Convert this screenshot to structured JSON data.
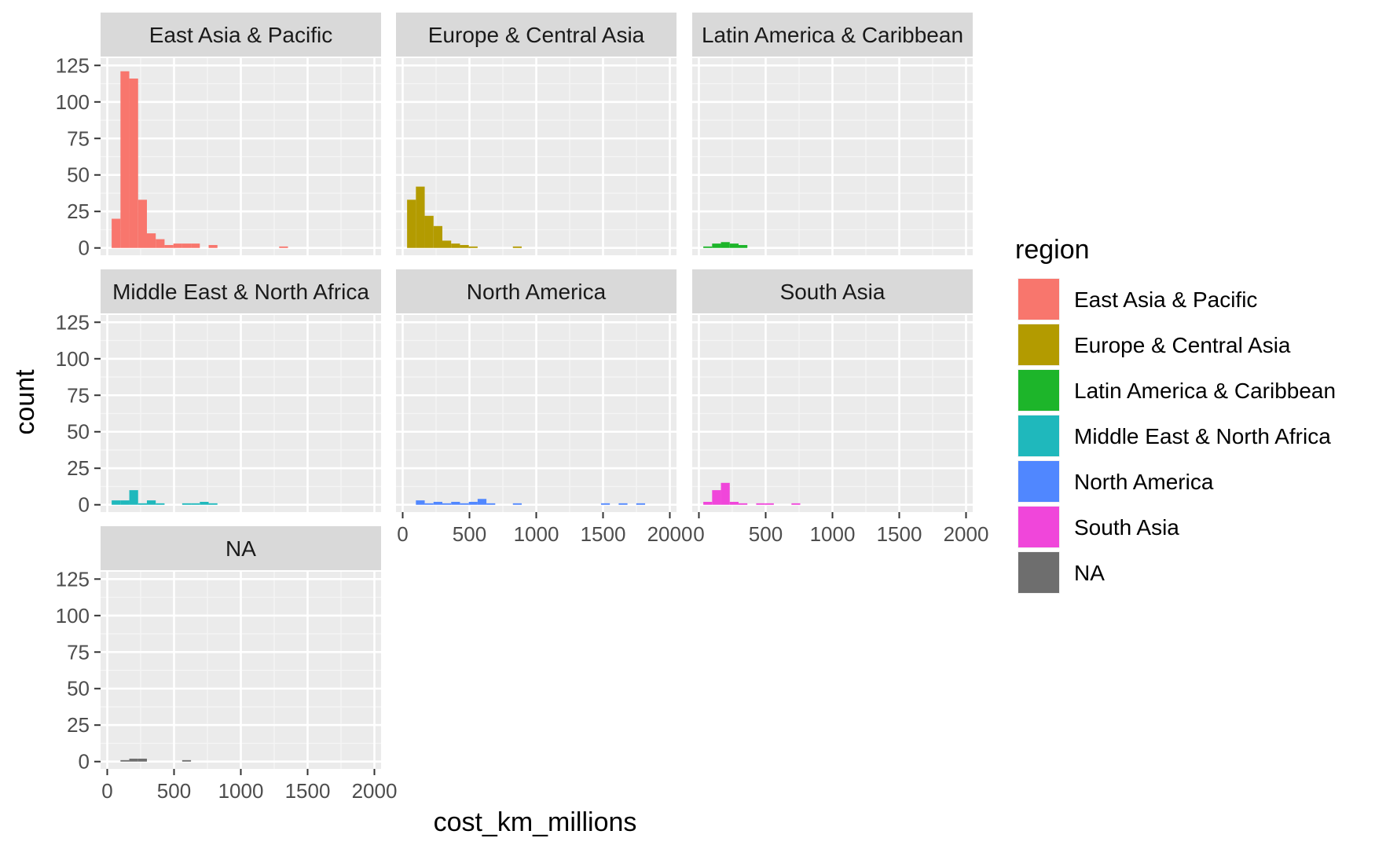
{
  "chart_data": {
    "type": "bar",
    "subtype": "faceted-histogram",
    "xlabel": "cost_km_millions",
    "ylabel": "count",
    "xlim": [
      -50,
      2050
    ],
    "ylim": [
      -5,
      130
    ],
    "x_ticks": [
      0,
      500,
      1000,
      1500,
      2000
    ],
    "x_tick_labels": [
      "0",
      "500",
      "1000",
      "1500",
      "2000"
    ],
    "y_ticks": [
      0,
      25,
      50,
      75,
      100,
      125
    ],
    "y_tick_labels": [
      "0",
      "25",
      "50",
      "75",
      "100",
      "125"
    ],
    "bin_width": 66,
    "grid": true,
    "legend": {
      "title": "region",
      "position": "right",
      "entries": [
        {
          "label": "East Asia & Pacific",
          "color": "#F8766D"
        },
        {
          "label": "Europe & Central Asia",
          "color": "#B39B00"
        },
        {
          "label": "Latin America & Caribbean",
          "color": "#1DB52A"
        },
        {
          "label": "Middle East & North Africa",
          "color": "#1FB8BC"
        },
        {
          "label": "North America",
          "color": "#5087FF"
        },
        {
          "label": "South Asia",
          "color": "#F046DA"
        },
        {
          "label": "NA",
          "color": "#6E6E6E"
        }
      ]
    },
    "panels": [
      {
        "name": "East Asia & Pacific",
        "color": "#F8766D",
        "bins": [
          [
            66,
            20
          ],
          [
            132,
            121
          ],
          [
            198,
            116
          ],
          [
            264,
            33
          ],
          [
            330,
            10
          ],
          [
            396,
            6
          ],
          [
            462,
            2
          ],
          [
            528,
            3
          ],
          [
            594,
            3
          ],
          [
            660,
            3
          ],
          [
            792,
            2
          ],
          [
            1320,
            1
          ]
        ]
      },
      {
        "name": "Europe & Central Asia",
        "color": "#B39B00",
        "bins": [
          [
            66,
            33
          ],
          [
            132,
            42
          ],
          [
            198,
            22
          ],
          [
            264,
            15
          ],
          [
            330,
            5
          ],
          [
            396,
            3
          ],
          [
            462,
            2
          ],
          [
            528,
            1
          ],
          [
            858,
            1
          ]
        ]
      },
      {
        "name": "Latin America & Caribbean",
        "color": "#1DB52A",
        "bins": [
          [
            66,
            1
          ],
          [
            132,
            3
          ],
          [
            198,
            4
          ],
          [
            264,
            3
          ],
          [
            330,
            2
          ]
        ]
      },
      {
        "name": "Middle East & North Africa",
        "color": "#1FB8BC",
        "bins": [
          [
            66,
            3
          ],
          [
            132,
            3
          ],
          [
            198,
            10
          ],
          [
            264,
            1
          ],
          [
            330,
            3
          ],
          [
            396,
            1
          ],
          [
            594,
            1
          ],
          [
            660,
            1
          ],
          [
            726,
            2
          ],
          [
            792,
            1
          ]
        ]
      },
      {
        "name": "North America",
        "color": "#5087FF",
        "bins": [
          [
            132,
            3
          ],
          [
            198,
            1
          ],
          [
            264,
            2
          ],
          [
            330,
            1
          ],
          [
            396,
            2
          ],
          [
            462,
            1
          ],
          [
            528,
            2
          ],
          [
            594,
            4
          ],
          [
            660,
            1
          ],
          [
            858,
            1
          ],
          [
            1518,
            1
          ],
          [
            1650,
            1
          ],
          [
            1782,
            1
          ]
        ]
      },
      {
        "name": "South Asia",
        "color": "#F046DA",
        "bins": [
          [
            66,
            2
          ],
          [
            132,
            10
          ],
          [
            198,
            15
          ],
          [
            264,
            2
          ],
          [
            330,
            1
          ],
          [
            462,
            1
          ],
          [
            528,
            1
          ],
          [
            726,
            1
          ]
        ]
      },
      {
        "name": "NA",
        "color": "#6E6E6E",
        "bins": [
          [
            132,
            1
          ],
          [
            198,
            2
          ],
          [
            264,
            2
          ],
          [
            594,
            1
          ]
        ]
      }
    ]
  }
}
